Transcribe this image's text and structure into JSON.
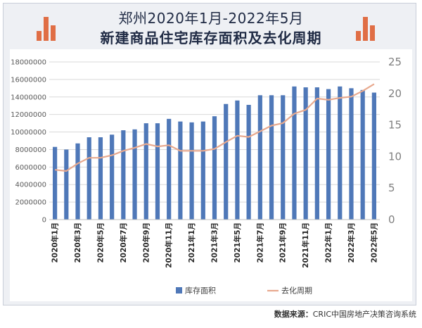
{
  "title_line1": "郑州2020年1月-2022年5月",
  "title_line2": "新建商品住宅库存面积及去化周期",
  "source_label": "数据来源：",
  "source_text": "CRIC中国房地产决策咨询系统",
  "colors": {
    "bar": "#4f78b8",
    "line": "#e8a98e",
    "accent": "#e06e45",
    "title": "#1f2a44"
  },
  "chart_data": {
    "type": "bar",
    "categories": [
      "2020年1月",
      "2020年2月",
      "2020年3月",
      "2020年4月",
      "2020年5月",
      "2020年6月",
      "2020年7月",
      "2020年8月",
      "2020年9月",
      "2020年10月",
      "2020年11月",
      "2020年12月",
      "2021年1月",
      "2021年2月",
      "2021年3月",
      "2021年4月",
      "2021年5月",
      "2021年6月",
      "2021年7月",
      "2021年8月",
      "2021年9月",
      "2021年10月",
      "2021年11月",
      "2021年12月",
      "2022年1月",
      "2022年2月",
      "2022年3月",
      "2022年4月",
      "2022年5月"
    ],
    "x_tick_labels": [
      "2020年1月",
      "2020年3月",
      "2020年5月",
      "2020年7月",
      "2020年9月",
      "2020年11月",
      "2021年1月",
      "2021年3月",
      "2021年5月",
      "2021年7月",
      "2021年9月",
      "2021年11月",
      "2022年1月",
      "2022年3月",
      "2022年5月"
    ],
    "series": [
      {
        "name": "库存面积",
        "type": "bar",
        "axis": "left",
        "values": [
          8300000,
          8000000,
          8700000,
          9400000,
          9400000,
          9700000,
          10200000,
          10300000,
          11000000,
          11000000,
          11500000,
          11200000,
          11100000,
          11200000,
          11800000,
          13200000,
          13600000,
          13100000,
          14200000,
          14200000,
          14200000,
          15200000,
          15100000,
          15100000,
          14900000,
          15200000,
          15000000,
          14800000,
          14500000
        ]
      },
      {
        "name": "去化周期",
        "type": "line",
        "axis": "right",
        "values": [
          7.9,
          7.7,
          8.9,
          9.8,
          9.8,
          10.2,
          10.9,
          11.4,
          12.0,
          11.6,
          11.8,
          10.9,
          10.9,
          10.9,
          11.2,
          12.3,
          13.3,
          13.1,
          14.0,
          14.9,
          15.3,
          16.8,
          17.4,
          19.2,
          19.0,
          19.3,
          19.5,
          20.4,
          21.5
        ]
      }
    ],
    "y_left": {
      "min": 0,
      "max": 18000000,
      "ticks": [
        "0",
        "2000000",
        "4000000",
        "6000000",
        "8000000",
        "10000000",
        "12000000",
        "14000000",
        "16000000",
        "18000000"
      ]
    },
    "y_right": {
      "min": 0,
      "max": 25,
      "ticks": [
        "0",
        "5",
        "10",
        "15",
        "20",
        "25"
      ]
    },
    "legend": [
      "库存面积",
      "去化周期"
    ],
    "legend_position": "bottom"
  }
}
